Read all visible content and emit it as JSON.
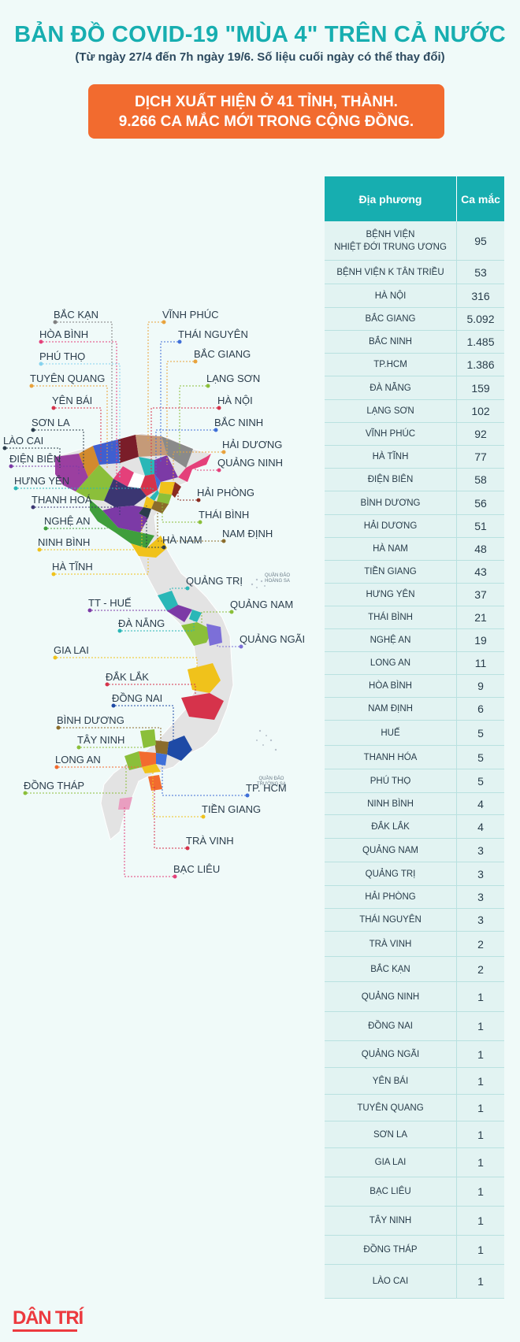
{
  "header": {
    "title": "BẢN ĐỒ COVID-19 \"MÙA 4\" TRÊN CẢ NƯỚC",
    "subtitle": "(Từ ngày 27/4 đến 7h ngày 19/6. Số liệu cuối ngày có thể thay đổi)",
    "banner_line1": "DỊCH XUẤT HIỆN Ở 41 TỈNH, THÀNH.",
    "banner_line2": "9.266 CA MẮC MỚI TRONG CỘNG ĐỒNG."
  },
  "colors": {
    "title": "#17aeb0",
    "banner": "#f26b2f",
    "table_header": "#17aeb0",
    "table_row": "#e2f3f2",
    "logo": "#ec3a3f"
  },
  "table": {
    "col_location": "Địa phương",
    "col_cases": "Ca mắc",
    "rows": [
      {
        "location": "BỆNH VIỆN\nNHIỆT ĐỚI TRUNG ƯƠNG",
        "cases": "95"
      },
      {
        "location": "BỆNH VIỆN K TÂN TRIỀU",
        "cases": "53"
      },
      {
        "location": "HÀ NỘI",
        "cases": "316"
      },
      {
        "location": "BẮC GIANG",
        "cases": "5.092"
      },
      {
        "location": "BẮC NINH",
        "cases": "1.485"
      },
      {
        "location": "TP.HCM",
        "cases": "1.386"
      },
      {
        "location": "ĐÀ NẴNG",
        "cases": "159"
      },
      {
        "location": "LẠNG SƠN",
        "cases": "102"
      },
      {
        "location": "VĨNH PHÚC",
        "cases": "92"
      },
      {
        "location": "HÀ TĨNH",
        "cases": "77"
      },
      {
        "location": "ĐIỆN BIÊN",
        "cases": "58"
      },
      {
        "location": "BÌNH DƯƠNG",
        "cases": "56"
      },
      {
        "location": "HẢI DƯƠNG",
        "cases": "51"
      },
      {
        "location": "HÀ NAM",
        "cases": "48"
      },
      {
        "location": "TIỀN GIANG",
        "cases": "43"
      },
      {
        "location": "HƯNG YÊN",
        "cases": "37"
      },
      {
        "location": "THÁI BÌNH",
        "cases": "21"
      },
      {
        "location": "NGHỆ AN",
        "cases": "19"
      },
      {
        "location": "LONG AN",
        "cases": "11"
      },
      {
        "location": "HÒA BÌNH",
        "cases": "9"
      },
      {
        "location": "NAM ĐỊNH",
        "cases": "6"
      },
      {
        "location": "HUẾ",
        "cases": "5"
      },
      {
        "location": "THANH HÓA",
        "cases": "5"
      },
      {
        "location": "PHÚ THỌ",
        "cases": "5"
      },
      {
        "location": "NINH BÌNH",
        "cases": "4"
      },
      {
        "location": "ĐẮK LẮK",
        "cases": "4"
      },
      {
        "location": "QUẢNG NAM",
        "cases": "3"
      },
      {
        "location": "QUẢNG TRỊ",
        "cases": "3"
      },
      {
        "location": "HẢI PHÒNG",
        "cases": "3"
      },
      {
        "location": "THÁI NGUYÊN",
        "cases": "3"
      },
      {
        "location": "TRÀ VINH",
        "cases": "2"
      },
      {
        "location": "BẮC KẠN",
        "cases": "2"
      },
      {
        "location": "QUẢNG NINH",
        "cases": "1"
      },
      {
        "location": "ĐỒNG NAI",
        "cases": "1"
      },
      {
        "location": "QUẢNG NGÃI",
        "cases": "1"
      },
      {
        "location": "YÊN BÁI",
        "cases": "1"
      },
      {
        "location": "TUYÊN QUANG",
        "cases": "1"
      },
      {
        "location": "SƠN  LA",
        "cases": "1"
      },
      {
        "location": "GIA LAI",
        "cases": "1"
      },
      {
        "location": "BẠC LIÊU",
        "cases": "1"
      },
      {
        "location": "TÂY NINH",
        "cases": "1"
      },
      {
        "location": "ĐỒNG THÁP",
        "cases": "1"
      },
      {
        "location": "LÀO CAI",
        "cases": "1"
      }
    ]
  },
  "map": {
    "labels": [
      {
        "text": "BẮC KẠN",
        "color": "#7f7f7f"
      },
      {
        "text": "VĨNH PHÚC",
        "color": "#e8a23c"
      },
      {
        "text": "HÒA BÌNH",
        "color": "#e4407a"
      },
      {
        "text": "THÁI NGUYÊN",
        "color": "#3f6fd8"
      },
      {
        "text": "PHÚ THỌ",
        "color": "#86d3ee"
      },
      {
        "text": "BẮC GIANG",
        "color": "#e8a23c"
      },
      {
        "text": "TUYÊN QUANG",
        "color": "#e8a23c"
      },
      {
        "text": "LẠNG SƠN",
        "color": "#8bbf3a"
      },
      {
        "text": "YÊN BÁI",
        "color": "#d6334b"
      },
      {
        "text": "HÀ NỘI",
        "color": "#d6334b"
      },
      {
        "text": "SƠN LA",
        "color": "#2b3d4c"
      },
      {
        "text": "BẮC NINH",
        "color": "#3f6fd8"
      },
      {
        "text": "LÀO CAI",
        "color": "#2b3d4c"
      },
      {
        "text": "HẢI DƯƠNG",
        "color": "#e8a23c"
      },
      {
        "text": "ĐIỆN BIÊN",
        "color": "#7c3aa6"
      },
      {
        "text": "QUẢNG NINH",
        "color": "#e4407a"
      },
      {
        "text": "HƯNG YÊN",
        "color": "#2ab7b7"
      },
      {
        "text": "HẢI PHÒNG",
        "color": "#8b2b20"
      },
      {
        "text": "THANH HOÁ",
        "color": "#3b3672"
      },
      {
        "text": "THÁI BÌNH",
        "color": "#8bbf3a"
      },
      {
        "text": "NGHỆ AN",
        "color": "#3f9e3c"
      },
      {
        "text": "NAM ĐỊNH",
        "color": "#8b6c2b"
      },
      {
        "text": "NINH BÌNH",
        "color": "#f0c21b"
      },
      {
        "text": "HÀ NAM",
        "color": "#2b3d4c"
      },
      {
        "text": "HÀ TĨNH",
        "color": "#f0c21b"
      },
      {
        "text": "QUẢNG TRỊ",
        "color": "#2ab7b7"
      },
      {
        "text": "TT - HUẾ",
        "color": "#7c3aa6"
      },
      {
        "text": "QUẢNG NAM",
        "color": "#8bbf3a"
      },
      {
        "text": "ĐÀ NẴNG",
        "color": "#2ab7b7"
      },
      {
        "text": "QUẢNG NGÃI",
        "color": "#7c6fd8"
      },
      {
        "text": "GIA LAI",
        "color": "#f0c21b"
      },
      {
        "text": "ĐẮK LẮK",
        "color": "#d6334b"
      },
      {
        "text": "ĐỒNG NAI",
        "color": "#1e4aa6"
      },
      {
        "text": "BÌNH DƯƠNG",
        "color": "#8b6c2b"
      },
      {
        "text": "TÂY NINH",
        "color": "#8bbf3a"
      },
      {
        "text": "LONG AN",
        "color": "#f26b2f"
      },
      {
        "text": "TP. HCM",
        "color": "#3f6fd8"
      },
      {
        "text": "ĐỒNG THÁP",
        "color": "#8bbf3a"
      },
      {
        "text": "TIỀN GIANG",
        "color": "#f0c21b"
      },
      {
        "text": "TRÀ VINH",
        "color": "#d6334b"
      },
      {
        "text": "BẠC LIÊU",
        "color": "#e4407a"
      }
    ],
    "islands": [
      {
        "line1": "QUẦN ĐẢO",
        "line2": "HOÀNG SA"
      },
      {
        "line1": "QUẦN ĐẢO",
        "line2": "TRƯỜNG SA"
      }
    ]
  },
  "footer": {
    "logo": "DÂN TRÍ"
  }
}
